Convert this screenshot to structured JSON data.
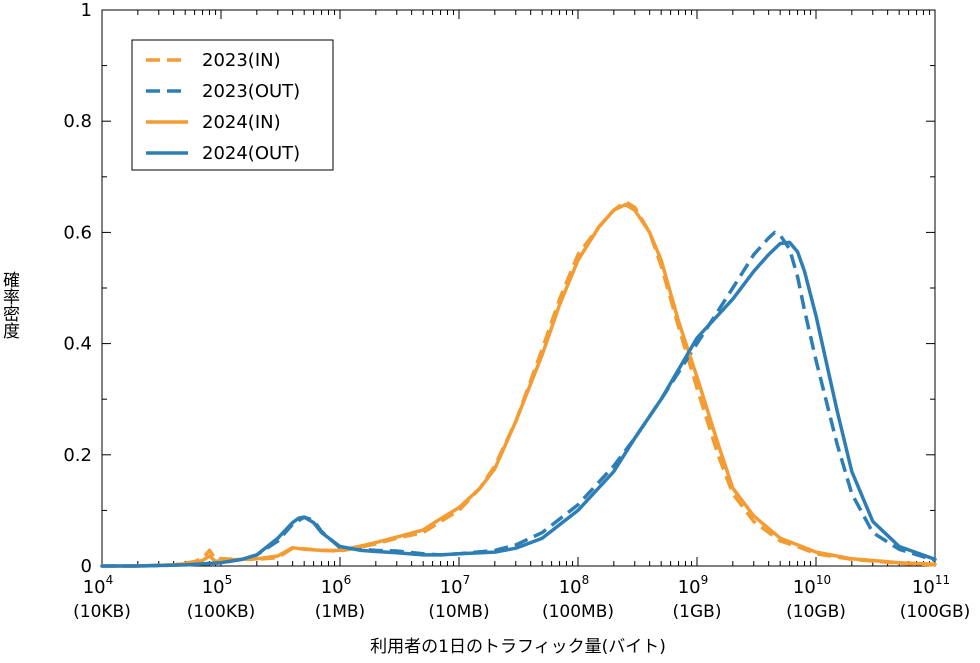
{
  "chart_data": {
    "type": "line",
    "title": "",
    "xlabel": "利用者の1日のトラフィック量(バイト)",
    "ylabel": "確率密度",
    "xscale": "log",
    "xlim": [
      10000,
      100000000000
    ],
    "ylim": [
      0,
      1
    ],
    "grid": false,
    "legend_position": "top-left",
    "x_ticks": [
      {
        "exp": "4",
        "label": "(10KB)"
      },
      {
        "exp": "5",
        "label": "(100KB)"
      },
      {
        "exp": "6",
        "label": "(1MB)"
      },
      {
        "exp": "7",
        "label": "(10MB)"
      },
      {
        "exp": "8",
        "label": "(100MB)"
      },
      {
        "exp": "9",
        "label": "(1GB)"
      },
      {
        "exp": "10",
        "label": "(10GB)"
      },
      {
        "exp": "11",
        "label": "(100GB)"
      }
    ],
    "x_tick_base": "10",
    "y_ticks": [
      "0",
      "0.2",
      "0.4",
      "0.6",
      "0.8",
      "1"
    ],
    "y_tick_values": [
      0,
      0.2,
      0.4,
      0.6,
      0.8,
      1
    ],
    "series": [
      {
        "name": "2023(IN)",
        "color": "#F39C34",
        "dashed": true,
        "x": [
          10000,
          20000,
          40000,
          60000,
          70000,
          80000,
          90000,
          100000,
          150000,
          200000,
          300000,
          400000,
          500000,
          700000,
          1000000,
          1500000,
          2000000,
          3000000,
          5000000,
          7000000,
          10000000,
          15000000,
          20000000,
          30000000,
          50000000,
          70000000,
          100000000,
          150000000,
          200000000,
          250000000,
          300000000,
          400000000,
          500000000,
          700000000,
          1000000000,
          1500000000,
          2000000000,
          3000000000,
          5000000000,
          7000000000,
          10000000000,
          20000000000,
          50000000000,
          100000000000
        ],
        "y": [
          0.0,
          0.0,
          0.002,
          0.008,
          0.014,
          0.028,
          0.012,
          0.013,
          0.012,
          0.012,
          0.015,
          0.032,
          0.031,
          0.028,
          0.027,
          0.034,
          0.04,
          0.05,
          0.06,
          0.08,
          0.1,
          0.14,
          0.18,
          0.26,
          0.39,
          0.48,
          0.56,
          0.61,
          0.64,
          0.655,
          0.645,
          0.6,
          0.54,
          0.43,
          0.32,
          0.2,
          0.13,
          0.08,
          0.045,
          0.035,
          0.022,
          0.012,
          0.005,
          0.002
        ]
      },
      {
        "name": "2023(OUT)",
        "color": "#2E7EB6",
        "dashed": true,
        "x": [
          10000,
          20000,
          50000,
          100000,
          150000,
          200000,
          300000,
          400000,
          500000,
          600000,
          700000,
          1000000,
          1500000,
          2000000,
          3000000,
          5000000,
          7000000,
          10000000,
          20000000,
          30000000,
          50000000,
          100000000,
          200000000,
          300000000,
          500000000,
          1000000000,
          2000000000,
          3000000000,
          4000000000,
          4500000000,
          5000000000,
          6000000000,
          7000000000,
          8000000000,
          10000000000,
          15000000000,
          20000000000,
          30000000000,
          50000000000,
          100000000000
        ],
        "y": [
          0.0,
          0.0,
          0.002,
          0.006,
          0.012,
          0.02,
          0.045,
          0.075,
          0.088,
          0.082,
          0.062,
          0.033,
          0.03,
          0.028,
          0.027,
          0.022,
          0.02,
          0.022,
          0.028,
          0.038,
          0.06,
          0.11,
          0.18,
          0.23,
          0.3,
          0.4,
          0.5,
          0.56,
          0.59,
          0.6,
          0.595,
          0.57,
          0.52,
          0.46,
          0.37,
          0.22,
          0.13,
          0.06,
          0.03,
          0.01
        ]
      },
      {
        "name": "2024(IN)",
        "color": "#F39C34",
        "dashed": false,
        "x": [
          10000,
          20000,
          40000,
          60000,
          70000,
          80000,
          90000,
          100000,
          150000,
          200000,
          300000,
          400000,
          500000,
          700000,
          1000000,
          1500000,
          2000000,
          3000000,
          5000000,
          7000000,
          10000000,
          15000000,
          20000000,
          30000000,
          50000000,
          70000000,
          100000000,
          150000000,
          200000000,
          250000000,
          300000000,
          400000000,
          500000000,
          700000000,
          1000000000,
          1500000000,
          2000000000,
          3000000000,
          5000000000,
          7000000000,
          10000000000,
          20000000000,
          50000000000,
          100000000000
        ],
        "y": [
          0.0,
          0.0,
          0.002,
          0.006,
          0.01,
          0.018,
          0.008,
          0.01,
          0.012,
          0.013,
          0.018,
          0.033,
          0.03,
          0.028,
          0.028,
          0.036,
          0.042,
          0.052,
          0.065,
          0.085,
          0.105,
          0.14,
          0.175,
          0.26,
          0.38,
          0.47,
          0.55,
          0.61,
          0.64,
          0.65,
          0.64,
          0.6,
          0.55,
          0.44,
          0.34,
          0.22,
          0.14,
          0.09,
          0.05,
          0.038,
          0.025,
          0.013,
          0.006,
          0.003
        ]
      },
      {
        "name": "2024(OUT)",
        "color": "#2E7EB6",
        "dashed": false,
        "x": [
          10000,
          20000,
          50000,
          100000,
          150000,
          200000,
          300000,
          400000,
          450000,
          500000,
          600000,
          700000,
          1000000,
          1500000,
          2000000,
          3000000,
          5000000,
          7000000,
          10000000,
          20000000,
          30000000,
          50000000,
          100000000,
          200000000,
          300000000,
          500000000,
          1000000000,
          2000000000,
          3000000000,
          4000000000,
          5000000000,
          6000000000,
          7000000000,
          8000000000,
          10000000000,
          15000000000,
          20000000000,
          30000000000,
          50000000000,
          100000000000
        ],
        "y": [
          0.0,
          0.0,
          0.002,
          0.006,
          0.012,
          0.02,
          0.05,
          0.078,
          0.086,
          0.088,
          0.078,
          0.06,
          0.035,
          0.028,
          0.026,
          0.024,
          0.02,
          0.02,
          0.022,
          0.025,
          0.032,
          0.05,
          0.1,
          0.17,
          0.23,
          0.3,
          0.41,
          0.48,
          0.53,
          0.56,
          0.58,
          0.582,
          0.565,
          0.53,
          0.45,
          0.28,
          0.17,
          0.08,
          0.035,
          0.012
        ]
      }
    ]
  }
}
